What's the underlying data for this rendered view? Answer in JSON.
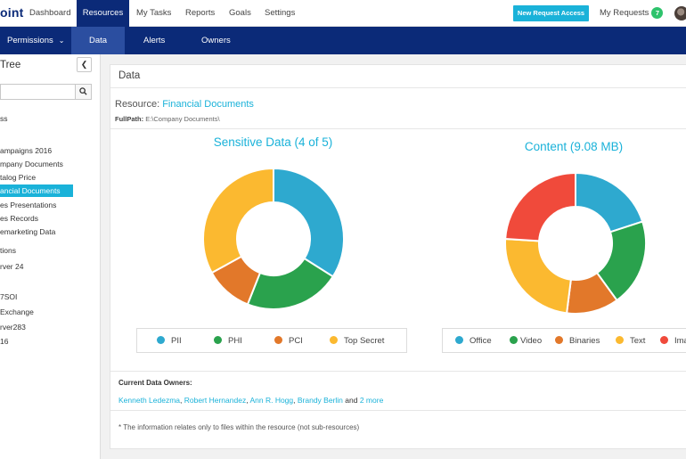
{
  "topnav": {
    "logo": "oint",
    "items": [
      "Dashboard",
      "Resources",
      "My Tasks",
      "Reports",
      "Goals",
      "Settings"
    ],
    "request_button": "New Request Access",
    "my_requests": "My Requests",
    "my_requests_count": "7"
  },
  "subnav": {
    "items": [
      "Permissions",
      "Data",
      "Alerts",
      "Owners"
    ]
  },
  "sidebar": {
    "title": "Tree",
    "search_placeholder": "",
    "items": [
      "ss",
      "ampaigns 2016",
      "mpany Documents",
      "talog Price",
      "ancial Documents",
      "es Presentations",
      "es Records",
      "emarketing Data",
      "tions",
      "rver 24",
      "7SOI",
      "Exchange",
      "rver283",
      "16"
    ]
  },
  "panel": {
    "title": "Data",
    "resource_label": "Resource:",
    "resource_name": "Financial Documents",
    "fullpath_label": "FullPath:",
    "fullpath_value": "E:\\Company Documents\\",
    "owners_label": "Current Data Owners:",
    "owners": [
      "Kenneth Ledezma",
      "Robert Hernandez",
      "Ann R. Hogg",
      "Brandy Berlin"
    ],
    "owners_and": "and",
    "owners_more": "2 more",
    "note": "* The information relates only to files within the resource (not sub-resources)"
  },
  "chart_data": [
    {
      "type": "pie",
      "title": "Sensitive Data (4 of 5)",
      "categories": [
        "PII",
        "PHI",
        "PCI",
        "Top Secret"
      ],
      "values": [
        34,
        22,
        11,
        33
      ],
      "colors": [
        "#2ea9cf",
        "#2aa24d",
        "#e2782a",
        "#fbb930"
      ]
    },
    {
      "type": "pie",
      "title": "Content (9.08 MB)",
      "categories": [
        "Office",
        "Video",
        "Binaries",
        "Text",
        "Ima"
      ],
      "values": [
        20,
        20,
        12,
        24,
        24
      ],
      "colors": [
        "#2ea9cf",
        "#2aa24d",
        "#e2782a",
        "#fbb930",
        "#f04a3b"
      ]
    }
  ]
}
